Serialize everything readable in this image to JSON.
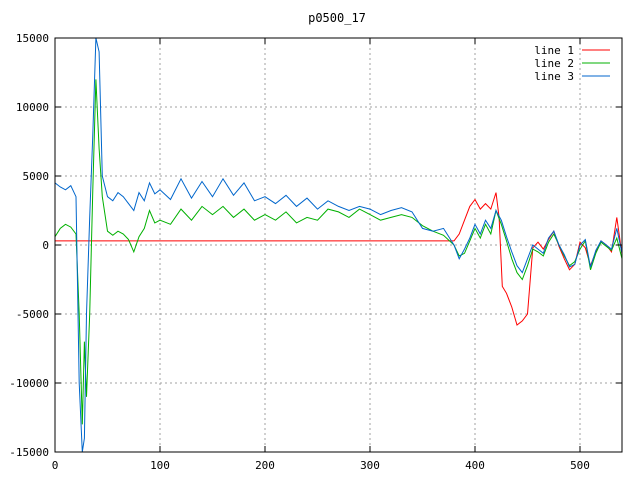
{
  "chart_data": {
    "type": "line",
    "title": "p0500_17",
    "xlabel": "",
    "ylabel": "",
    "xlim": [
      0,
      540
    ],
    "ylim": [
      -15000,
      15000
    ],
    "x_ticks": [
      0,
      100,
      200,
      300,
      400,
      500
    ],
    "y_ticks": [
      -15000,
      -10000,
      -5000,
      0,
      5000,
      10000,
      15000
    ],
    "grid": true,
    "legend_position": "top-right",
    "series": [
      {
        "name": "line 1",
        "color": "#ff0000",
        "x": [
          0,
          20,
          30,
          40,
          100,
          200,
          300,
          380,
          385,
          390,
          395,
          400,
          405,
          410,
          415,
          420,
          423,
          426,
          430,
          435,
          440,
          445,
          450,
          455,
          460,
          465,
          470,
          475,
          480,
          485,
          490,
          495,
          500,
          505,
          510,
          515,
          520,
          525,
          530,
          535,
          540
        ],
        "y": [
          300,
          300,
          300,
          300,
          300,
          300,
          300,
          300,
          800,
          1800,
          2800,
          3300,
          2600,
          3000,
          2600,
          3800,
          2000,
          -3000,
          -3500,
          -4500,
          -5800,
          -5500,
          -5000,
          -200,
          200,
          -300,
          400,
          1000,
          -100,
          -1000,
          -1800,
          -1400,
          200,
          -200,
          -1500,
          -500,
          300,
          0,
          -500,
          2000,
          -700
        ]
      },
      {
        "name": "line 2",
        "color": "#00b000",
        "x": [
          0,
          5,
          10,
          15,
          20,
          23,
          26,
          28,
          30,
          33,
          36,
          39,
          42,
          45,
          50,
          55,
          60,
          65,
          70,
          75,
          80,
          85,
          90,
          95,
          100,
          110,
          120,
          130,
          140,
          150,
          160,
          170,
          180,
          190,
          200,
          210,
          220,
          230,
          240,
          250,
          260,
          270,
          280,
          290,
          300,
          310,
          320,
          330,
          340,
          350,
          360,
          370,
          380,
          385,
          390,
          395,
          400,
          405,
          410,
          415,
          420,
          425,
          430,
          435,
          440,
          445,
          450,
          455,
          460,
          465,
          470,
          475,
          480,
          485,
          490,
          495,
          500,
          505,
          510,
          515,
          520,
          525,
          530,
          535,
          540
        ],
        "y": [
          600,
          1200,
          1500,
          1300,
          800,
          -5000,
          -13000,
          -7000,
          -11000,
          -5000,
          4000,
          12000,
          7000,
          3500,
          1000,
          700,
          1000,
          800,
          400,
          -500,
          600,
          1200,
          2500,
          1600,
          1800,
          1500,
          2600,
          1800,
          2800,
          2200,
          2800,
          2000,
          2600,
          1800,
          2200,
          1800,
          2400,
          1600,
          2000,
          1800,
          2600,
          2400,
          2000,
          2600,
          2200,
          1800,
          2000,
          2200,
          2000,
          1400,
          1000,
          700,
          0,
          -800,
          -600,
          300,
          1200,
          500,
          1500,
          800,
          2500,
          1500,
          300,
          -1000,
          -2000,
          -2500,
          -1500,
          -300,
          -500,
          -800,
          200,
          800,
          0,
          -800,
          -1500,
          -1200,
          -300,
          300,
          -1800,
          -600,
          200,
          -100,
          -400,
          500,
          -1000
        ]
      },
      {
        "name": "line 3",
        "color": "#0066cc",
        "x": [
          0,
          5,
          10,
          15,
          20,
          23,
          26,
          28,
          30,
          33,
          36,
          39,
          42,
          45,
          50,
          55,
          60,
          65,
          70,
          75,
          80,
          85,
          90,
          95,
          100,
          110,
          120,
          130,
          140,
          150,
          160,
          170,
          180,
          190,
          200,
          210,
          220,
          230,
          240,
          250,
          260,
          270,
          280,
          290,
          300,
          310,
          320,
          330,
          340,
          350,
          360,
          370,
          380,
          385,
          390,
          395,
          400,
          405,
          410,
          415,
          420,
          425,
          430,
          435,
          440,
          445,
          450,
          455,
          460,
          465,
          470,
          475,
          480,
          485,
          490,
          495,
          500,
          505,
          510,
          515,
          520,
          525,
          530,
          535,
          540
        ],
        "y": [
          4500,
          4200,
          4000,
          4300,
          3500,
          -10000,
          -15000,
          -14000,
          -5000,
          2000,
          8000,
          15000,
          14000,
          5000,
          3500,
          3200,
          3800,
          3500,
          3000,
          2500,
          3800,
          3200,
          4500,
          3700,
          4000,
          3300,
          4800,
          3400,
          4600,
          3500,
          4800,
          3600,
          4500,
          3200,
          3500,
          3000,
          3600,
          2800,
          3400,
          2600,
          3200,
          2800,
          2500,
          2800,
          2600,
          2200,
          2500,
          2700,
          2400,
          1200,
          1000,
          1200,
          0,
          -1000,
          -300,
          500,
          1500,
          800,
          1800,
          1200,
          2500,
          1800,
          600,
          -500,
          -1500,
          -2000,
          -1000,
          0,
          -300,
          -600,
          500,
          1000,
          0,
          -700,
          -1600,
          -1400,
          0,
          400,
          -1600,
          -400,
          300,
          0,
          -300,
          1200,
          -600
        ]
      }
    ]
  }
}
